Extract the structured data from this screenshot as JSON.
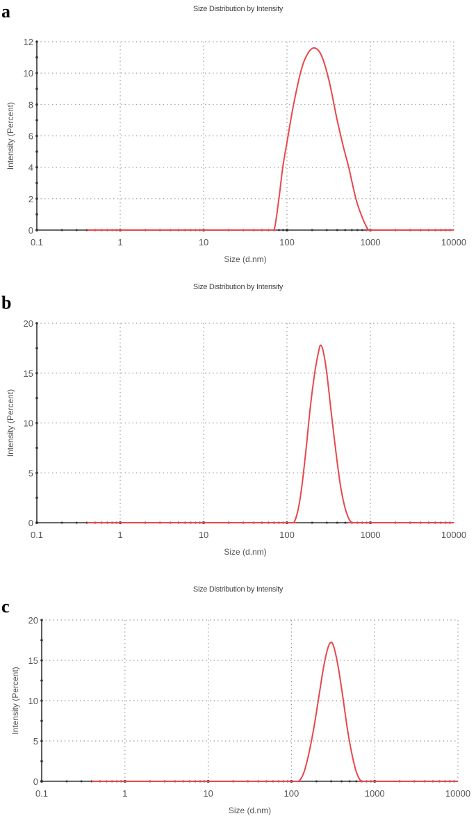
{
  "figure": {
    "panels": [
      {
        "label": "a",
        "title": "Size Distribution by Intensity",
        "xlabel": "Size (d.nm)",
        "ylabel": "Intensity (Percent)"
      },
      {
        "label": "b",
        "title": "Size Distribution by Intensity",
        "xlabel": "Size (d.nm)",
        "ylabel": "Intensity (Percent)"
      },
      {
        "label": "c",
        "title": "Size Distribution by Intensity",
        "xlabel": "Size (d.nm)",
        "ylabel": "Intensity (Percent)"
      }
    ],
    "colors": {
      "curve": "#e8474c",
      "axis": "#333333",
      "grid": "#9a9a9a",
      "text": "#555555"
    }
  },
  "chart_data": [
    {
      "panel": "a",
      "type": "line",
      "title": "Size Distribution by Intensity",
      "xlabel": "Size (d.nm)",
      "ylabel": "Intensity (Percent)",
      "xscale": "log",
      "xlim": [
        0.1,
        10000
      ],
      "ylim": [
        0,
        12
      ],
      "xticks": [
        0.1,
        1,
        10,
        100,
        1000,
        10000
      ],
      "xtick_labels": [
        "0.1",
        "1",
        "10",
        "100",
        "1000",
        "10000"
      ],
      "yticks": [
        0,
        2,
        4,
        6,
        8,
        10,
        12
      ],
      "ytick_labels": [
        "0",
        "2",
        "4",
        "6",
        "8",
        "10",
        "12"
      ],
      "grid": true,
      "legend": null,
      "series": [
        {
          "name": "Intensity",
          "x": [
            0.4,
            1,
            10,
            60,
            70,
            80,
            89,
            100,
            120,
            150,
            180,
            215,
            260,
            320,
            400,
            480,
            550,
            670,
            800,
            950,
            1100,
            10000
          ],
          "y": [
            0,
            0,
            0,
            0,
            0,
            2.0,
            4.0,
            5.6,
            8.0,
            10.3,
            11.3,
            11.6,
            11.1,
            9.5,
            7.0,
            5.2,
            4.0,
            2.0,
            0.8,
            0,
            0,
            0
          ]
        }
      ],
      "peak": {
        "x": 215,
        "y": 11.6
      }
    },
    {
      "panel": "b",
      "type": "line",
      "title": "Size Distribution by Intensity",
      "xlabel": "Size (d.nm)",
      "ylabel": "Intensity (Percent)",
      "xscale": "log",
      "xlim": [
        0.1,
        10000
      ],
      "ylim": [
        0,
        20
      ],
      "xticks": [
        0.1,
        1,
        10,
        100,
        1000,
        10000
      ],
      "xtick_labels": [
        "0.1",
        "1",
        "10",
        "100",
        "1000",
        "10000"
      ],
      "yticks": [
        0,
        5,
        10,
        15,
        20
      ],
      "ytick_labels": [
        "0",
        "5",
        "10",
        "15",
        "20"
      ],
      "grid": true,
      "legend": null,
      "series": [
        {
          "name": "Intensity",
          "x": [
            0.4,
            1,
            10,
            100,
            120,
            135,
            150,
            170,
            190,
            215,
            240,
            255,
            275,
            300,
            340,
            390,
            440,
            500,
            560,
            620,
            700,
            10000
          ],
          "y": [
            0,
            0,
            0,
            0,
            0,
            1.2,
            3.5,
            7.5,
            11.5,
            15.0,
            17.2,
            17.8,
            17.0,
            15.0,
            11.0,
            6.8,
            3.6,
            1.4,
            0.3,
            0,
            0,
            0
          ]
        }
      ],
      "peak": {
        "x": 255,
        "y": 17.8
      }
    },
    {
      "panel": "c",
      "type": "line",
      "title": "Size Distribution by Intensity",
      "xlabel": "Size (d.nm)",
      "ylabel": "Intensity (Percent)",
      "xscale": "log",
      "xlim": [
        0.1,
        10000
      ],
      "ylim": [
        0,
        20
      ],
      "xticks": [
        0.1,
        1,
        10,
        100,
        1000,
        10000
      ],
      "xtick_labels": [
        "0.1",
        "1",
        "10",
        "100",
        "1000",
        "10000"
      ],
      "yticks": [
        0,
        5,
        10,
        15,
        20
      ],
      "ytick_labels": [
        "0",
        "5",
        "10",
        "15",
        "20"
      ],
      "grid": true,
      "legend": null,
      "series": [
        {
          "name": "Intensity",
          "x": [
            0.4,
            1,
            10,
            100,
            122,
            140,
            160,
            185,
            210,
            240,
            270,
            295,
            320,
            360,
            410,
            470,
            530,
            600,
            690,
            800,
            10000
          ],
          "y": [
            0,
            0,
            0,
            0,
            0,
            1.0,
            3.2,
            6.5,
            10.0,
            13.8,
            16.3,
            17.2,
            16.8,
            14.5,
            10.8,
            6.5,
            3.5,
            1.2,
            0,
            0,
            0
          ]
        }
      ],
      "peak": {
        "x": 295,
        "y": 17.2
      }
    }
  ]
}
